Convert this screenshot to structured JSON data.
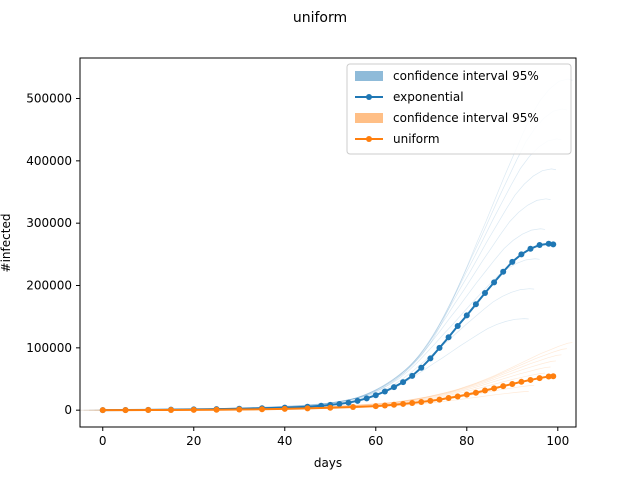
{
  "chart_data": {
    "type": "line",
    "title": "uniform",
    "xlabel": "days",
    "ylabel": "#infected",
    "xlim": [
      -5,
      104
    ],
    "ylim": [
      -27000,
      565000
    ],
    "xticks": [
      0,
      20,
      40,
      60,
      80,
      100
    ],
    "xtick_labels": [
      "0",
      "20",
      "40",
      "60",
      "80",
      "100"
    ],
    "yticks": [
      0,
      100000,
      200000,
      300000,
      400000,
      500000
    ],
    "ytick_labels": [
      "0",
      "100000",
      "200000",
      "300000",
      "400000",
      "500000"
    ],
    "grid": false,
    "legend": {
      "placement": "top-right",
      "entries": [
        {
          "label": "confidence interval 95%",
          "kind": "patch",
          "color": "#1f77b4"
        },
        {
          "label": "exponential",
          "kind": "line-marker",
          "color": "#1f77b4"
        },
        {
          "label": "confidence interval 95%",
          "kind": "patch",
          "color": "#ff7f0e"
        },
        {
          "label": "uniform",
          "kind": "line-marker",
          "color": "#ff7f0e"
        }
      ]
    },
    "series": [
      {
        "name": "exponential",
        "color": "#1f77b4",
        "x": [
          0,
          5,
          10,
          15,
          20,
          25,
          30,
          35,
          40,
          45,
          48,
          50,
          52,
          54,
          56,
          58,
          60,
          62,
          64,
          66,
          68,
          70,
          72,
          74,
          76,
          78,
          80,
          82,
          84,
          86,
          88,
          90,
          92,
          94,
          96,
          98,
          99
        ],
        "y": [
          0,
          200,
          500,
          800,
          1200,
          1700,
          2300,
          3000,
          4000,
          5500,
          7000,
          8500,
          10000,
          12000,
          15000,
          19000,
          24000,
          30000,
          37000,
          45000,
          55000,
          68000,
          83000,
          100000,
          117000,
          135000,
          152000,
          170000,
          188000,
          205000,
          222000,
          238000,
          250000,
          259000,
          265000,
          267000,
          266000
        ]
      },
      {
        "name": "uniform",
        "color": "#ff7f0e",
        "x": [
          0,
          5,
          10,
          15,
          20,
          25,
          30,
          35,
          40,
          45,
          50,
          55,
          60,
          62,
          64,
          66,
          68,
          70,
          72,
          74,
          76,
          78,
          80,
          82,
          84,
          86,
          88,
          90,
          92,
          94,
          96,
          98,
          99
        ],
        "y": [
          0,
          100,
          200,
          300,
          500,
          700,
          1000,
          1400,
          2000,
          2800,
          3800,
          5000,
          6500,
          7500,
          8700,
          10000,
          11500,
          13200,
          15000,
          17000,
          19500,
          22000,
          25000,
          28000,
          31500,
          35000,
          38500,
          42000,
          45500,
          48500,
          51500,
          54000,
          54500
        ]
      }
    ],
    "confidence_bands": [
      {
        "series": "exponential",
        "label": "confidence interval 95%",
        "color": "#1f77b4"
      },
      {
        "series": "uniform",
        "label": "confidence interval 95%",
        "color": "#ff7f0e"
      }
    ]
  }
}
